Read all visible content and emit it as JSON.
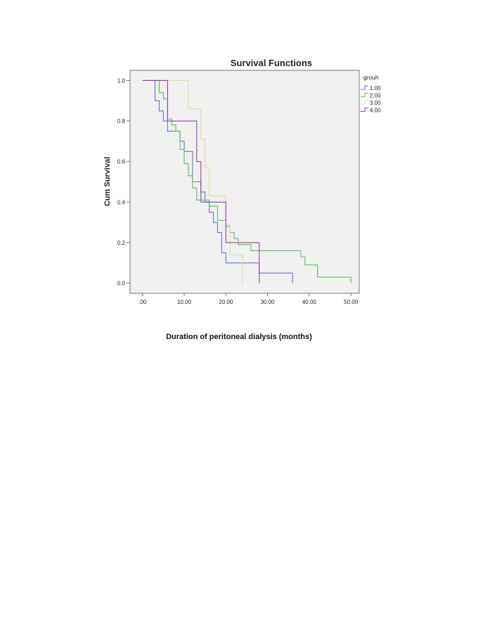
{
  "chart_data": {
    "type": "line",
    "step": true,
    "title": "Survival Functions",
    "ylabel": "Cum Survival",
    "xlabel": "",
    "xlim": [
      -3,
      52
    ],
    "ylim": [
      -0.05,
      1.05
    ],
    "xticks": [
      0,
      10,
      20,
      30,
      40,
      50
    ],
    "xtick_labels": [
      ".00",
      "10.00",
      "20.00",
      "30.00",
      "40.00",
      "50.00"
    ],
    "yticks": [
      0,
      0.2,
      0.4,
      0.6,
      0.8,
      1.0
    ],
    "ytick_labels": [
      "0.0",
      "0.2",
      "0.4",
      "0.6",
      "0.8",
      "1.0"
    ],
    "grid": false,
    "legend": {
      "title": "grouh",
      "position": "right"
    },
    "series": [
      {
        "name": "1.00",
        "color": "#6a6fd6",
        "points": [
          [
            0,
            1.0
          ],
          [
            3,
            1.0
          ],
          [
            3,
            0.9
          ],
          [
            4,
            0.9
          ],
          [
            4,
            0.85
          ],
          [
            5,
            0.85
          ],
          [
            5,
            0.8
          ],
          [
            6,
            0.8
          ],
          [
            6,
            0.75
          ],
          [
            9,
            0.75
          ],
          [
            9,
            0.7
          ],
          [
            10,
            0.7
          ],
          [
            10,
            0.65
          ],
          [
            12,
            0.65
          ],
          [
            12,
            0.55
          ],
          [
            12,
            0.5
          ],
          [
            14,
            0.5
          ],
          [
            14,
            0.45
          ],
          [
            15,
            0.45
          ],
          [
            15,
            0.4
          ],
          [
            16,
            0.4
          ],
          [
            16,
            0.35
          ],
          [
            17,
            0.35
          ],
          [
            17,
            0.3
          ],
          [
            18,
            0.3
          ],
          [
            18,
            0.25
          ],
          [
            19,
            0.25
          ],
          [
            19,
            0.15
          ],
          [
            20,
            0.15
          ],
          [
            20,
            0.1
          ],
          [
            28,
            0.1
          ],
          [
            28,
            0.05
          ],
          [
            36,
            0.05
          ],
          [
            36,
            0.0
          ]
        ]
      },
      {
        "name": "2.00",
        "color": "#4fc75a",
        "points": [
          [
            0,
            1.0
          ],
          [
            4,
            1.0
          ],
          [
            4,
            0.94
          ],
          [
            5,
            0.94
          ],
          [
            5,
            0.91
          ],
          [
            6,
            0.91
          ],
          [
            6,
            0.81
          ],
          [
            7,
            0.81
          ],
          [
            7,
            0.78
          ],
          [
            8,
            0.78
          ],
          [
            8,
            0.75
          ],
          [
            9,
            0.75
          ],
          [
            9,
            0.66
          ],
          [
            10,
            0.66
          ],
          [
            10,
            0.59
          ],
          [
            11,
            0.59
          ],
          [
            11,
            0.53
          ],
          [
            12,
            0.53
          ],
          [
            12,
            0.47
          ],
          [
            13,
            0.47
          ],
          [
            13,
            0.41
          ],
          [
            15,
            0.41
          ],
          [
            15,
            0.41
          ],
          [
            16,
            0.41
          ],
          [
            16,
            0.38
          ],
          [
            18,
            0.38
          ],
          [
            18,
            0.31
          ],
          [
            20,
            0.31
          ],
          [
            20,
            0.28
          ],
          [
            21,
            0.28
          ],
          [
            21,
            0.25
          ],
          [
            22,
            0.25
          ],
          [
            22,
            0.22
          ],
          [
            23,
            0.22
          ],
          [
            23,
            0.19
          ],
          [
            26,
            0.19
          ],
          [
            26,
            0.16
          ],
          [
            38,
            0.16
          ],
          [
            38,
            0.13
          ],
          [
            39,
            0.13
          ],
          [
            39,
            0.09
          ],
          [
            42,
            0.09
          ],
          [
            42,
            0.03
          ],
          [
            50,
            0.03
          ],
          [
            50,
            0.0
          ]
        ]
      },
      {
        "name": "3.00",
        "color": "#dedba2",
        "points": [
          [
            0,
            1.0
          ],
          [
            11,
            1.0
          ],
          [
            11,
            0.86
          ],
          [
            14,
            0.86
          ],
          [
            14,
            0.71
          ],
          [
            15,
            0.71
          ],
          [
            15,
            0.57
          ],
          [
            16,
            0.57
          ],
          [
            16,
            0.43
          ],
          [
            20,
            0.43
          ],
          [
            20,
            0.29
          ],
          [
            21,
            0.29
          ],
          [
            21,
            0.14
          ],
          [
            24,
            0.14
          ],
          [
            24,
            0.0
          ]
        ]
      },
      {
        "name": "4.00",
        "color": "#9a3fa6",
        "points": [
          [
            0,
            1.0
          ],
          [
            6,
            1.0
          ],
          [
            6,
            0.8
          ],
          [
            13,
            0.8
          ],
          [
            13,
            0.6
          ],
          [
            14,
            0.6
          ],
          [
            14,
            0.4
          ],
          [
            20,
            0.4
          ],
          [
            20,
            0.2
          ],
          [
            28,
            0.2
          ],
          [
            28,
            0.0
          ]
        ]
      }
    ]
  },
  "caption": "Duration of peritoneal dialysis (months)"
}
